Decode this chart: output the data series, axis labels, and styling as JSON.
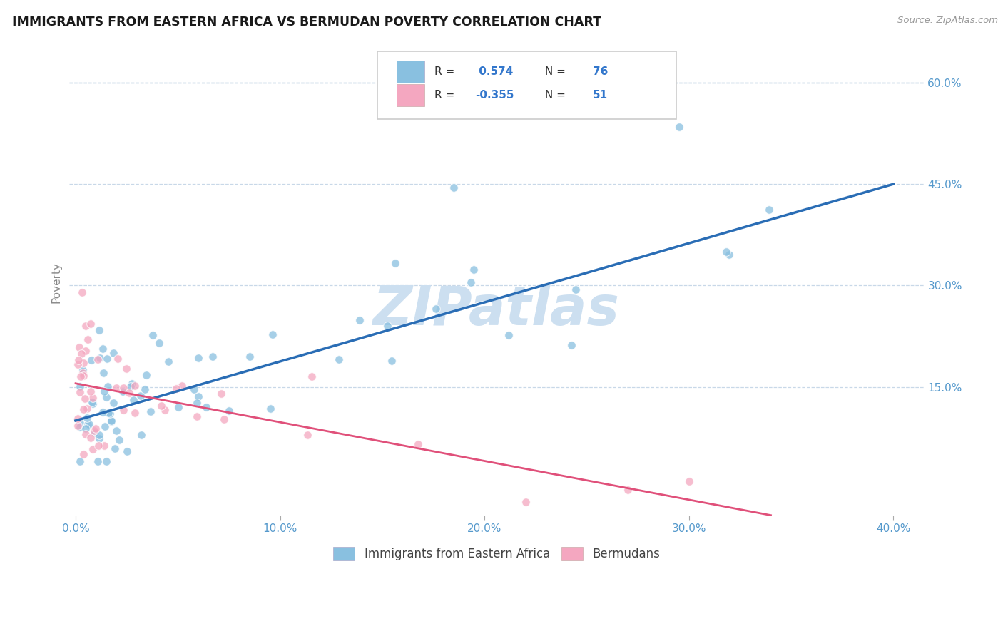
{
  "title": "IMMIGRANTS FROM EASTERN AFRICA VS BERMUDAN POVERTY CORRELATION CHART",
  "source_text": "Source: ZipAtlas.com",
  "ylabel": "Poverty",
  "xlim": [
    -0.003,
    0.415
  ],
  "ylim": [
    -0.04,
    0.65
  ],
  "xticks": [
    0.0,
    0.1,
    0.2,
    0.3,
    0.4
  ],
  "xtick_labels": [
    "0.0%",
    "10.0%",
    "20.0%",
    "30.0%",
    "40.0%"
  ],
  "yticks_right": [
    0.15,
    0.3,
    0.45,
    0.6
  ],
  "ytick_labels_right": [
    "15.0%",
    "30.0%",
    "45.0%",
    "60.0%"
  ],
  "blue_R": 0.574,
  "blue_N": 76,
  "pink_R": -0.355,
  "pink_N": 51,
  "blue_color": "#89c0e0",
  "pink_color": "#f4a7c0",
  "blue_line_color": "#2a6db5",
  "pink_line_color": "#e0507a",
  "blue_line_x": [
    0.0,
    0.4
  ],
  "blue_line_y": [
    0.1,
    0.45
  ],
  "pink_line_x": [
    0.0,
    0.34
  ],
  "pink_line_y": [
    0.155,
    -0.04
  ],
  "watermark": "ZIPatlas",
  "watermark_color": "#ccdff0",
  "legend_label_blue": "Immigrants from Eastern Africa",
  "legend_label_pink": "Bermudans",
  "title_color": "#1a1a1a",
  "source_color": "#999999",
  "tick_color": "#5599cc",
  "ylabel_color": "#888888",
  "grid_color": "#c8d8e8",
  "legend_border_color": "#cccccc"
}
